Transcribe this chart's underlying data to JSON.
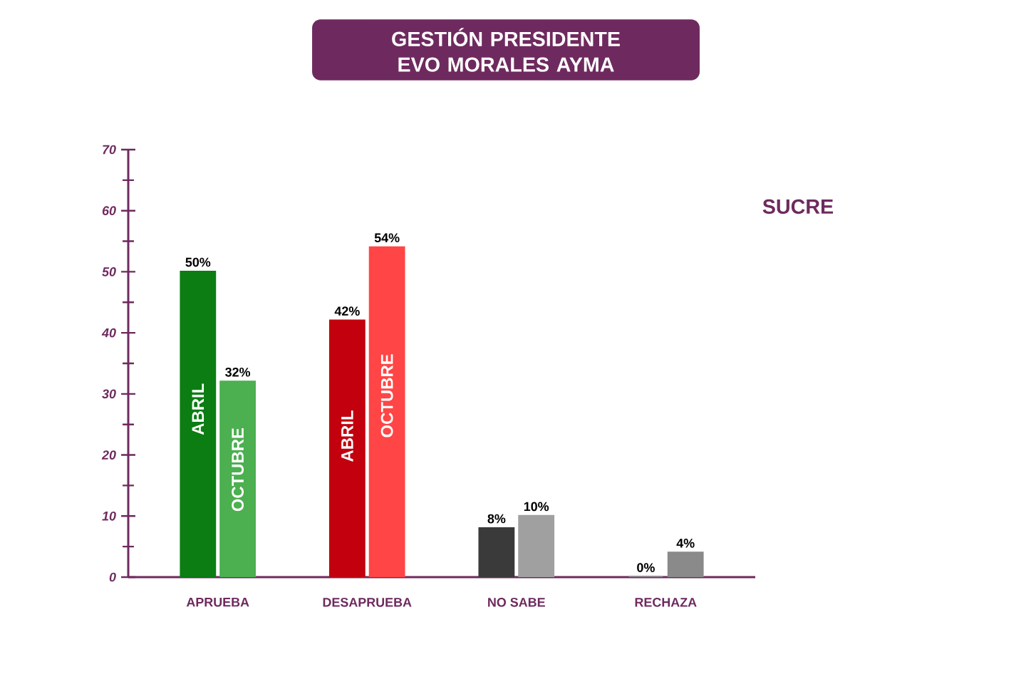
{
  "chart_data": {
    "type": "bar",
    "title": "GESTIÓN PRESIDENTE EVO MORALES AYMA",
    "annotations": [
      "SUCRE"
    ],
    "categories": [
      "APRUEBA",
      "DESAPRUEBA",
      "NO SABE",
      "RECHAZA"
    ],
    "series": [
      {
        "name": "ABRIL",
        "colors": [
          "#0b7d12",
          "#c2000e",
          "#3a3a3a",
          "#8a8a8a"
        ],
        "values": [
          50,
          42,
          8,
          0
        ],
        "value_labels": [
          "50%",
          "42%",
          "8%",
          "0%"
        ]
      },
      {
        "name": "OCTUBRE",
        "colors": [
          "#4caf50",
          "#ff4545",
          "#a0a0a0",
          "#8a8a8a"
        ],
        "values": [
          32,
          54,
          10,
          4
        ],
        "value_labels": [
          "32%",
          "54%",
          "10%",
          "4%"
        ]
      }
    ],
    "ylim": [
      0,
      70
    ],
    "yticks": [
      0,
      10,
      20,
      30,
      40,
      50,
      60,
      70
    ],
    "legend": false,
    "grid": false
  }
}
